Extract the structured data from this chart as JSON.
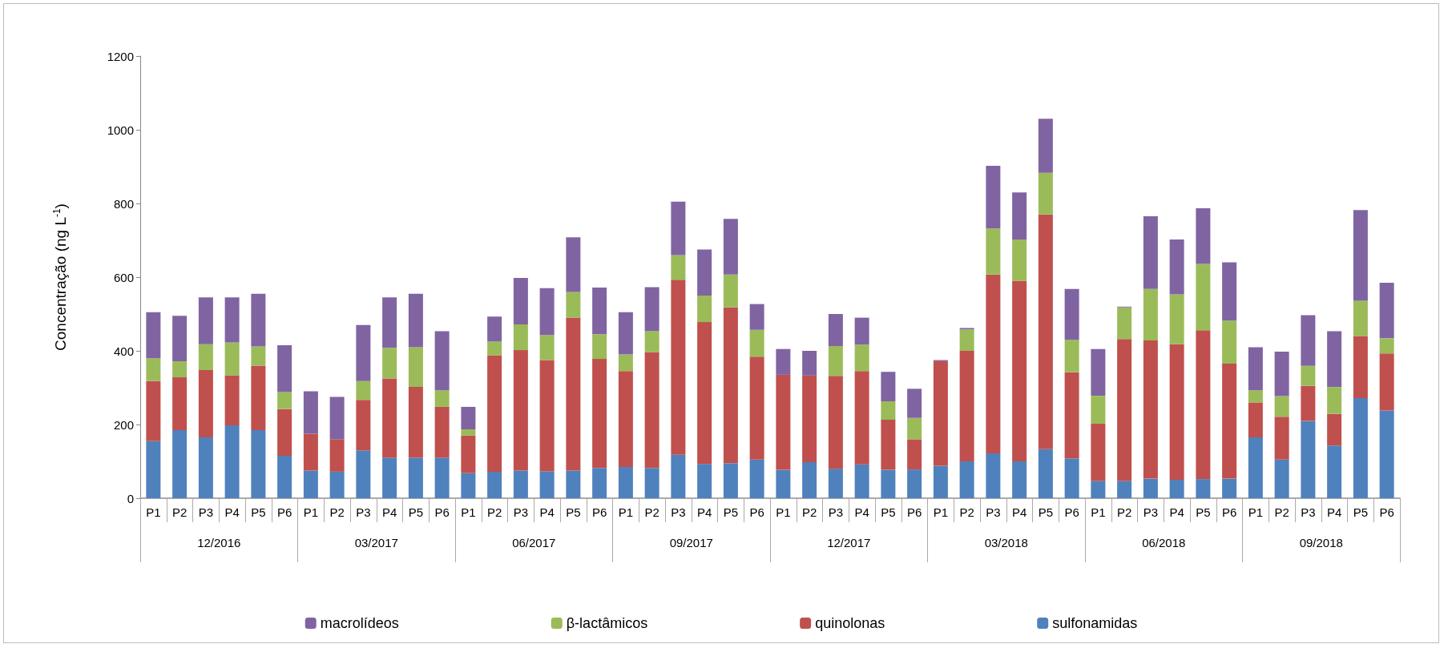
{
  "chart_data": {
    "type": "bar",
    "stacked": true,
    "ylabel": "Concentração (ng L$^{-1}$)",
    "categories": [
      "P1",
      "P2",
      "P3",
      "P4",
      "P5",
      "P6",
      "P1",
      "P2",
      "P3",
      "P4",
      "P5",
      "P6",
      "P1",
      "P2",
      "P3",
      "P4",
      "P5",
      "P6",
      "P1",
      "P2",
      "P3",
      "P4",
      "P5",
      "P6",
      "P1",
      "P2",
      "P3",
      "P4",
      "P5",
      "P6",
      "P1",
      "P2",
      "P3",
      "P4",
      "P5",
      "P6",
      "P1",
      "P2",
      "P3",
      "P4",
      "P5",
      "P6",
      "P1",
      "P2",
      "P3",
      "P4",
      "P5",
      "P6"
    ],
    "annotations": [
      "12/2016",
      "03/2017",
      "06/2017",
      "09/2017",
      "12/2017",
      "03/2018",
      "06/2018",
      "09/2018"
    ],
    "series": [
      {
        "name": "sulfonamidas",
        "color": "#4f81bd",
        "values": [
          155,
          185,
          165,
          198,
          185,
          115,
          75,
          72,
          130,
          110,
          110,
          110,
          68,
          72,
          75,
          73,
          75,
          82,
          85,
          82,
          118,
          93,
          95,
          105,
          77,
          98,
          80,
          92,
          77,
          78,
          88,
          100,
          122,
          100,
          133,
          108,
          47,
          47,
          53,
          50,
          52,
          53,
          165,
          105,
          210,
          143,
          272,
          238
        ]
      },
      {
        "name": "quinolonas",
        "color": "#c0504d",
        "values": [
          163,
          143,
          183,
          135,
          175,
          127,
          100,
          88,
          137,
          215,
          192,
          138,
          102,
          316,
          327,
          302,
          415,
          296,
          260,
          314,
          475,
          385,
          423,
          279,
          258,
          235,
          252,
          253,
          136,
          82,
          284,
          300,
          485,
          490,
          637,
          234,
          155,
          385,
          375,
          368,
          404,
          312,
          95,
          116,
          95,
          86,
          168,
          155
        ]
      },
      {
        "name": "β-lactâmicos",
        "color": "#9bbb59",
        "values": [
          62,
          44,
          70,
          90,
          52,
          46,
          0,
          0,
          51,
          83,
          108,
          45,
          17,
          37,
          70,
          68,
          70,
          67,
          45,
          58,
          67,
          72,
          89,
          73,
          0,
          0,
          81,
          72,
          50,
          58,
          0,
          58,
          125,
          112,
          113,
          88,
          76,
          86,
          140,
          135,
          180,
          117,
          33,
          56,
          54,
          73,
          96,
          41
        ]
      },
      {
        "name": "macrolídeos",
        "color": "#8064a2",
        "values": [
          125,
          123,
          127,
          122,
          143,
          127,
          115,
          115,
          152,
          137,
          145,
          160,
          61,
          68,
          126,
          127,
          148,
          127,
          115,
          119,
          145,
          125,
          151,
          70,
          70,
          67,
          87,
          73,
          80,
          79,
          3,
          4,
          170,
          128,
          147,
          138,
          127,
          2,
          197,
          149,
          151,
          158,
          117,
          121,
          138,
          151,
          246,
          151
        ]
      }
    ],
    "ylim": [
      0,
      1200
    ],
    "yticks": [
      0,
      200,
      400,
      600,
      800,
      1000,
      1200
    ],
    "grid": false,
    "legend": "bottom"
  }
}
